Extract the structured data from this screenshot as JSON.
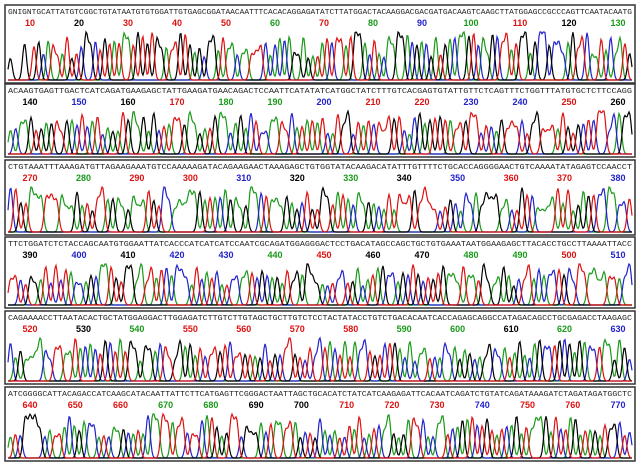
{
  "base_colors": {
    "A": "#1a9a1a",
    "C": "#2222cc",
    "G": "#000000",
    "T": "#dd1111"
  },
  "panels": [
    {
      "sequence": "GNIGNTGCATTATGTCGGCTGTATAATGTGTGGATTGTGAGCGGATAACAATTTCACACAGGAGATATCTTATGGACTACAAGGACGACGATGACAAGTCAAGCTTATGGAGCCGCCCAGTTCAATACAATG",
      "positions": [
        {
          "value": 10,
          "color": "#dd1111"
        },
        {
          "value": 20,
          "color": "#000000"
        },
        {
          "value": 30,
          "color": "#dd1111"
        },
        {
          "value": 40,
          "color": "#dd1111"
        },
        {
          "value": 50,
          "color": "#dd1111"
        },
        {
          "value": 60,
          "color": "#1a9a1a"
        },
        {
          "value": 70,
          "color": "#dd1111"
        },
        {
          "value": 80,
          "color": "#1a9a1a"
        },
        {
          "value": 90,
          "color": "#2222cc"
        },
        {
          "value": 100,
          "color": "#1a9a1a"
        },
        {
          "value": 110,
          "color": "#dd1111"
        },
        {
          "value": 120,
          "color": "#000000"
        },
        {
          "value": 130,
          "color": "#1a9a1a"
        }
      ]
    },
    {
      "sequence": "ACAAGTGAGTTGACTCATCAGATGAAGAGCTATTGAAGATGAACAGACTCCAATTCATATATCATGGCTATCTTTGTCACGAGTGTATTGTTCTCAGTTTCTGGTTTATGTGCTCTTCCAGG",
      "positions": [
        {
          "value": 140,
          "color": "#000000"
        },
        {
          "value": 150,
          "color": "#2222cc"
        },
        {
          "value": 160,
          "color": "#000000"
        },
        {
          "value": 170,
          "color": "#dd1111"
        },
        {
          "value": 180,
          "color": "#1a9a1a"
        },
        {
          "value": 190,
          "color": "#1a9a1a"
        },
        {
          "value": 200,
          "color": "#2222cc"
        },
        {
          "value": 210,
          "color": "#dd1111"
        },
        {
          "value": 220,
          "color": "#dd1111"
        },
        {
          "value": 230,
          "color": "#2222cc"
        },
        {
          "value": 240,
          "color": "#2222cc"
        },
        {
          "value": 250,
          "color": "#dd1111"
        },
        {
          "value": 260,
          "color": "#000000"
        }
      ]
    },
    {
      "sequence": "CTGTAAATTTAAAGATGTTAGAAGAAATGTCCAAAAAGATACAGAAGAACTAAAGAGCTGTGGTATACAAGACATATTTGTTTTCTGCACCAGGGGAACTGTCAAAATATAGAGTCCAACCT",
      "positions": [
        {
          "value": 270,
          "color": "#dd1111"
        },
        {
          "value": 280,
          "color": "#1a9a1a"
        },
        {
          "value": 290,
          "color": "#dd1111"
        },
        {
          "value": 300,
          "color": "#dd1111"
        },
        {
          "value": 310,
          "color": "#2222cc"
        },
        {
          "value": 320,
          "color": "#000000"
        },
        {
          "value": 330,
          "color": "#1a9a1a"
        },
        {
          "value": 340,
          "color": "#000000"
        },
        {
          "value": 350,
          "color": "#2222cc"
        },
        {
          "value": 360,
          "color": "#dd1111"
        },
        {
          "value": 370,
          "color": "#dd1111"
        },
        {
          "value": 380,
          "color": "#2222cc"
        }
      ]
    },
    {
      "sequence": "TTCTGGATCTCTACCAGCAATGTGGAATTATCACCCATCATCATCCAATCGCAGATGGAGGGACTCCTGACATAGCCAGCTGCTGTGAAATAATGGAAGAGCTTACACCTGCCTTAAAATTACC",
      "positions": [
        {
          "value": 390,
          "color": "#000000"
        },
        {
          "value": 400,
          "color": "#2222cc"
        },
        {
          "value": 410,
          "color": "#000000"
        },
        {
          "value": 420,
          "color": "#2222cc"
        },
        {
          "value": 430,
          "color": "#2222cc"
        },
        {
          "value": 440,
          "color": "#1a9a1a"
        },
        {
          "value": 450,
          "color": "#dd1111"
        },
        {
          "value": 460,
          "color": "#000000"
        },
        {
          "value": 470,
          "color": "#000000"
        },
        {
          "value": 480,
          "color": "#1a9a1a"
        },
        {
          "value": 490,
          "color": "#1a9a1a"
        },
        {
          "value": 500,
          "color": "#dd1111"
        },
        {
          "value": 510,
          "color": "#2222cc"
        }
      ]
    },
    {
      "sequence": "CAGAAAACCTTAATACACTGCTATGGAGGACTTGGAGATCTTGTCTTGTAGCTGCTTGTCTCCTACTATACCTGTCTGACACAATCACCAGAGCAGGCCATAGACAGCCTGCGAGACCTAAGAGC",
      "positions": [
        {
          "value": 520,
          "color": "#dd1111"
        },
        {
          "value": 530,
          "color": "#000000"
        },
        {
          "value": 540,
          "color": "#1a9a1a"
        },
        {
          "value": 550,
          "color": "#dd1111"
        },
        {
          "value": 560,
          "color": "#dd1111"
        },
        {
          "value": 570,
          "color": "#dd1111"
        },
        {
          "value": 580,
          "color": "#dd1111"
        },
        {
          "value": 590,
          "color": "#1a9a1a"
        },
        {
          "value": 600,
          "color": "#1a9a1a"
        },
        {
          "value": 610,
          "color": "#000000"
        },
        {
          "value": 620,
          "color": "#1a9a1a"
        },
        {
          "value": 630,
          "color": "#2222cc"
        }
      ]
    },
    {
      "sequence": "ATCGGGGCATTACAGACCATCAAGCATACAATTATTCTTCATGAGTTCGGGACTAATTAGCTGCACATCTATCATCAAGAGATTCACAATCAGATCTGTATCAGATAAAGATCTAGATAGATGGCTC",
      "positions": [
        {
          "value": 640,
          "color": "#dd1111"
        },
        {
          "value": 650,
          "color": "#dd1111"
        },
        {
          "value": 660,
          "color": "#dd1111"
        },
        {
          "value": 670,
          "color": "#1a9a1a"
        },
        {
          "value": 680,
          "color": "#1a9a1a"
        },
        {
          "value": 690,
          "color": "#000000"
        },
        {
          "value": 700,
          "color": "#000000"
        },
        {
          "value": 710,
          "color": "#dd1111"
        },
        {
          "value": 720,
          "color": "#dd1111"
        },
        {
          "value": 730,
          "color": "#dd1111"
        },
        {
          "value": 740,
          "color": "#2222cc"
        },
        {
          "value": 750,
          "color": "#dd1111"
        },
        {
          "value": 760,
          "color": "#dd1111"
        },
        {
          "value": 770,
          "color": "#2222cc"
        }
      ]
    }
  ]
}
